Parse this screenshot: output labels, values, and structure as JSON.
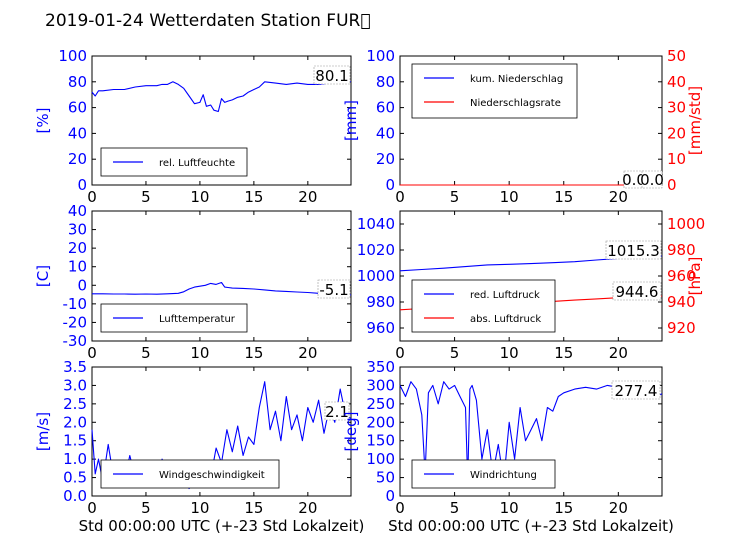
{
  "title": "2019-01-24 Wetterdaten Station FUR\u0000",
  "colors": {
    "primary": "#0000ff",
    "secondary": "#ff0000",
    "frame": "#000000"
  },
  "chart_data": [
    {
      "id": "humidity",
      "type": "line",
      "xlabel": "",
      "ylabel": "[%]",
      "xlim": [
        0,
        24
      ],
      "ylim": [
        0,
        100
      ],
      "xticks": [
        0,
        5,
        10,
        15,
        20
      ],
      "yticks": [
        0,
        20,
        40,
        60,
        80,
        100
      ],
      "grid": false,
      "legend": {
        "location": "lower-left",
        "entries": [
          {
            "label": "rel. Luftfeuchte",
            "color": "#0000ff"
          }
        ]
      },
      "annotations": [
        "80.1"
      ],
      "series": [
        {
          "name": "rel. Luftfeuchte",
          "color": "#0000ff",
          "x": [
            0,
            0.3,
            0.6,
            1,
            2,
            3,
            4,
            5,
            6,
            6.5,
            7,
            7.5,
            8,
            8.5,
            9,
            9.5,
            10,
            10.3,
            10.6,
            11,
            11.3,
            11.7,
            12,
            12.3,
            12.6,
            13,
            13.5,
            14,
            14.5,
            15,
            15.5,
            16,
            17,
            18,
            19,
            20,
            21,
            22,
            23,
            24
          ],
          "y": [
            72,
            69,
            73,
            73,
            74,
            74,
            76,
            77,
            77,
            78,
            78,
            80,
            78,
            75,
            69,
            63,
            64,
            70,
            61,
            62,
            58,
            57,
            67,
            64,
            65,
            66,
            68,
            69,
            72,
            74,
            76,
            80,
            79,
            78,
            79,
            78,
            78,
            79,
            80,
            80.1
          ]
        }
      ]
    },
    {
      "id": "precipitation",
      "type": "line",
      "xlabel": "",
      "ylabel": "[mm]",
      "ylabel_right": "[mm/std]",
      "xlim": [
        0,
        24
      ],
      "ylim": [
        0,
        100
      ],
      "ylim_right": [
        0,
        50
      ],
      "xticks": [
        0,
        5,
        10,
        15,
        20
      ],
      "yticks": [
        0,
        20,
        40,
        60,
        80,
        100
      ],
      "yticks_right": [
        0,
        10,
        20,
        30,
        40,
        50
      ],
      "grid": false,
      "legend": {
        "location": "top-left",
        "entries": [
          {
            "label": "kum. Niederschlag",
            "color": "#0000ff"
          },
          {
            "label": "Niederschlagsrate",
            "color": "#ff0000"
          }
        ]
      },
      "annotations": [
        "0.0",
        "0.0"
      ],
      "series": [
        {
          "name": "kum. Niederschlag",
          "color": "#0000ff",
          "axis": "left",
          "x": [
            0,
            24
          ],
          "y": [
            0,
            0
          ]
        },
        {
          "name": "Niederschlagsrate",
          "color": "#ff0000",
          "axis": "right",
          "x": [
            0,
            24
          ],
          "y": [
            0,
            0
          ]
        }
      ]
    },
    {
      "id": "temperature",
      "type": "line",
      "xlabel": "",
      "ylabel": "[C]",
      "xlim": [
        0,
        24
      ],
      "ylim": [
        -30,
        40
      ],
      "xticks": [
        0,
        5,
        10,
        15,
        20
      ],
      "yticks": [
        -30,
        -20,
        -10,
        0,
        10,
        20,
        30,
        40
      ],
      "grid": false,
      "legend": {
        "location": "lower-left",
        "entries": [
          {
            "label": "Lufttemperatur",
            "color": "#0000ff"
          }
        ]
      },
      "annotations": [
        "-5.1"
      ],
      "series": [
        {
          "name": "Lufttemperatur",
          "color": "#0000ff",
          "x": [
            0,
            1,
            2,
            3,
            4,
            5,
            6,
            7,
            7.5,
            8,
            8.5,
            9,
            9.5,
            10,
            10.5,
            11,
            11.5,
            12,
            12.3,
            12.6,
            13,
            14,
            15,
            16,
            17,
            18,
            19,
            20,
            21,
            22,
            23,
            24
          ],
          "y": [
            -4.6,
            -4.6,
            -4.7,
            -4.7,
            -4.8,
            -4.7,
            -4.8,
            -4.6,
            -4.5,
            -4.3,
            -3.5,
            -2.0,
            -1.0,
            -0.5,
            0.0,
            1.0,
            0.5,
            1.5,
            -1.0,
            -1.2,
            -1.5,
            -1.7,
            -2.0,
            -2.5,
            -3.0,
            -3.3,
            -3.6,
            -3.9,
            -4.3,
            -4.8,
            -5.0,
            -5.1
          ]
        }
      ]
    },
    {
      "id": "pressure",
      "type": "line",
      "xlabel": "",
      "ylabel": "",
      "ylabel_right": "[hPa]",
      "xlim": [
        0,
        24
      ],
      "ylim": [
        950,
        1050
      ],
      "ylim_right": [
        910,
        1010
      ],
      "xticks": [
        0,
        5,
        10,
        15,
        20
      ],
      "yticks": [
        960,
        980,
        1000,
        1020,
        1040
      ],
      "yticks_right": [
        920,
        940,
        960,
        980,
        1000
      ],
      "grid": false,
      "legend": {
        "location": "lower-left",
        "entries": [
          {
            "label": "red. Luftdruck",
            "color": "#0000ff"
          },
          {
            "label": "abs. Luftdruck",
            "color": "#ff0000"
          }
        ]
      },
      "annotations": [
        "1015.3",
        "944.6"
      ],
      "series": [
        {
          "name": "red. Luftdruck",
          "color": "#0000ff",
          "axis": "left",
          "x": [
            0,
            2,
            4,
            6,
            8,
            10,
            12,
            14,
            16,
            18,
            20,
            22,
            24
          ],
          "y": [
            1004.0,
            1005.0,
            1006.0,
            1007.2,
            1008.5,
            1009.0,
            1009.5,
            1010.2,
            1011.0,
            1012.3,
            1013.5,
            1014.5,
            1015.3
          ]
        },
        {
          "name": "abs. Luftdruck",
          "color": "#ff0000",
          "axis": "right",
          "x": [
            0,
            2,
            4,
            6,
            8,
            10,
            12,
            14,
            16,
            18,
            20,
            22,
            24
          ],
          "y": [
            934.0,
            935.0,
            936.0,
            937.2,
            938.2,
            939.0,
            939.8,
            940.5,
            941.5,
            942.4,
            943.3,
            944.0,
            944.6
          ]
        }
      ]
    },
    {
      "id": "windspeed",
      "type": "line",
      "xlabel": "Std 00:00:00 UTC (+-23 Std Lokalzeit)",
      "ylabel": "[m/s]",
      "xlim": [
        0,
        24
      ],
      "ylim": [
        0,
        3.5
      ],
      "xticks": [
        0,
        5,
        10,
        15,
        20
      ],
      "yticks": [
        0.0,
        0.5,
        1.0,
        1.5,
        2.0,
        2.5,
        3.0,
        3.5
      ],
      "grid": false,
      "legend": {
        "location": "lower-left",
        "entries": [
          {
            "label": "Windgeschwindigkeit",
            "color": "#0000ff"
          }
        ]
      },
      "annotations": [
        "2.1"
      ],
      "series": [
        {
          "name": "Windgeschwindigkeit",
          "color": "#0000ff",
          "x": [
            0,
            0.3,
            0.6,
            1,
            1.5,
            2,
            2.5,
            3,
            3.5,
            4,
            4.5,
            5,
            5.5,
            6,
            6.5,
            7,
            7.5,
            8,
            8.5,
            9,
            9.5,
            10,
            10.5,
            11,
            11.5,
            12,
            12.5,
            13,
            13.5,
            14,
            14.5,
            15,
            15.5,
            16,
            16.5,
            17,
            17.5,
            18,
            18.5,
            19,
            19.5,
            20,
            20.5,
            21,
            21.5,
            22,
            22.5,
            23,
            23.5,
            24
          ],
          "y": [
            1.8,
            0.6,
            1.0,
            0.4,
            1.4,
            0.5,
            0.9,
            0.4,
            1.1,
            0.5,
            0.9,
            0.3,
            0.8,
            0.4,
            1.0,
            0.3,
            0.7,
            0.5,
            0.9,
            0.2,
            0.6,
            0.3,
            0.9,
            0.5,
            1.3,
            0.9,
            1.8,
            1.2,
            1.9,
            1.1,
            1.6,
            1.4,
            2.4,
            3.1,
            1.8,
            2.3,
            1.5,
            2.7,
            1.8,
            2.2,
            1.5,
            2.4,
            2.0,
            2.6,
            1.7,
            2.4,
            2.0,
            2.9,
            2.2,
            2.1
          ]
        }
      ]
    },
    {
      "id": "winddirection",
      "type": "line",
      "xlabel": "Std 00:00:00 UTC (+-23 Std Lokalzeit)",
      "ylabel": "[deg]",
      "xlim": [
        0,
        24
      ],
      "ylim": [
        0,
        350
      ],
      "xticks": [
        0,
        5,
        10,
        15,
        20
      ],
      "yticks": [
        0,
        50,
        100,
        150,
        200,
        250,
        300,
        350
      ],
      "grid": false,
      "legend": {
        "location": "lower-left",
        "entries": [
          {
            "label": "Windrichtung",
            "color": "#0000ff"
          }
        ]
      },
      "annotations": [
        "277.4"
      ],
      "series": [
        {
          "name": "Windrichtung",
          "color": "#0000ff",
          "x": [
            0,
            0.5,
            1,
            1.5,
            2,
            2.3,
            2.6,
            3,
            3.5,
            4,
            4.5,
            5,
            5.5,
            6,
            6.2,
            6.4,
            6.6,
            7,
            7.5,
            8,
            8.5,
            9,
            9.5,
            10,
            10.5,
            11,
            11.5,
            12,
            12.5,
            13,
            13.5,
            14,
            14.5,
            15,
            16,
            17,
            18,
            19,
            20,
            21,
            22,
            23,
            23.5,
            24
          ],
          "y": [
            300,
            270,
            310,
            290,
            220,
            60,
            280,
            300,
            250,
            310,
            290,
            300,
            270,
            240,
            40,
            290,
            300,
            260,
            100,
            180,
            60,
            140,
            40,
            200,
            100,
            240,
            150,
            180,
            210,
            150,
            240,
            230,
            270,
            280,
            290,
            295,
            290,
            300,
            295,
            290,
            300,
            290,
            270,
            277.4
          ]
        }
      ]
    }
  ]
}
